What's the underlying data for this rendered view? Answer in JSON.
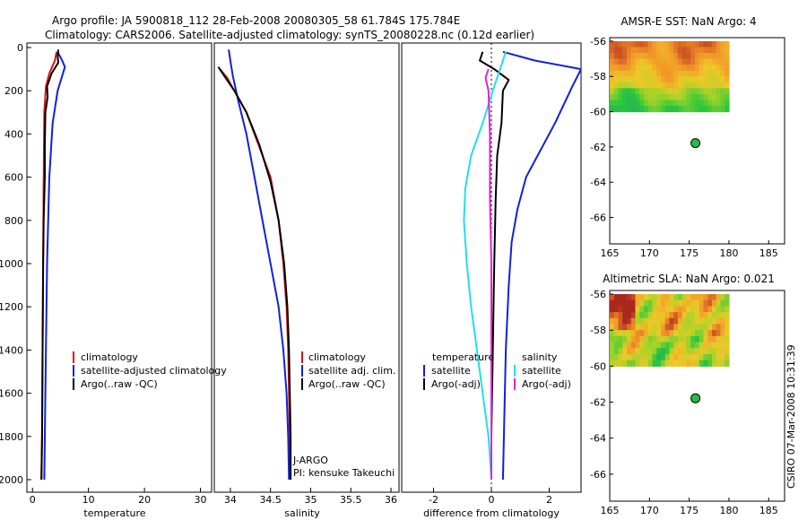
{
  "title_line1": "Argo profile: JA 5900818_112 28-Feb-2008 20080305_58 61.784S 175.784E",
  "title_line2": "Climatology: CARS2006. Satellite-adjusted climatology: synTS_20080228.nc (0.12d earlier)",
  "credit": "CSIRO 07-Mar-2008 10:31:39",
  "colors": {
    "climatology": "#e01010",
    "satellite": "#1020e0",
    "argo": "#000000",
    "cyan": "#20e0e8",
    "magenta": "#e020e0"
  },
  "chart_data": [
    {
      "type": "line",
      "xlabel": "temperature",
      "ylim": [
        2050,
        0
      ],
      "xlim": [
        -1,
        32
      ],
      "xticks": [
        0,
        10,
        20,
        30
      ],
      "yticks": [
        0,
        200,
        400,
        600,
        800,
        1000,
        1200,
        1400,
        1600,
        1800,
        2000
      ],
      "legend": [
        "climatology",
        "satellite-adjusted climatology",
        "Argo(..raw -QC)"
      ],
      "series": [
        {
          "name": "climatology",
          "color": "#e01010",
          "points": [
            [
              4.3,
              20
            ],
            [
              4.0,
              60
            ],
            [
              3.0,
              120
            ],
            [
              2.4,
              180
            ],
            [
              2.1,
              300
            ],
            [
              2.0,
              600
            ],
            [
              1.9,
              1000
            ],
            [
              1.8,
              1400
            ],
            [
              1.7,
              1800
            ],
            [
              1.6,
              2000
            ]
          ]
        },
        {
          "name": "satellite-adjusted climatology",
          "color": "#1020e0",
          "points": [
            [
              4.5,
              20
            ],
            [
              5.3,
              60
            ],
            [
              5.8,
              90
            ],
            [
              4.5,
              200
            ],
            [
              3.6,
              350
            ],
            [
              3.0,
              600
            ],
            [
              2.6,
              1000
            ],
            [
              2.4,
              1400
            ],
            [
              2.2,
              1800
            ],
            [
              2.1,
              2000
            ]
          ]
        },
        {
          "name": "Argo(..raw -QC)",
          "color": "#000000",
          "points": [
            [
              4.6,
              10
            ],
            [
              4.5,
              40
            ],
            [
              4.6,
              70
            ],
            [
              3.4,
              120
            ],
            [
              2.6,
              180
            ],
            [
              2.7,
              230
            ],
            [
              2.3,
              300
            ],
            [
              2.2,
              450
            ],
            [
              2.2,
              600
            ],
            [
              2.0,
              800
            ],
            [
              1.9,
              1000
            ],
            [
              1.8,
              1400
            ],
            [
              1.7,
              1800
            ],
            [
              1.6,
              2000
            ]
          ]
        }
      ]
    },
    {
      "type": "line",
      "xlabel": "salinity",
      "ylim": [
        2050,
        0
      ],
      "xlim": [
        33.8,
        36.1
      ],
      "xticks": [
        34,
        34.5,
        35,
        35.5,
        36
      ],
      "xticklabels": [
        "34",
        "34.5",
        "35",
        "35.5",
        "36"
      ],
      "legend": [
        "climatology",
        "satellite adj. clim.",
        "Argo(..raw -QC)"
      ],
      "annotations": [
        "J-ARGO",
        "PI: kensuke Takeuchi"
      ],
      "series": [
        {
          "name": "climatology",
          "color": "#e01010",
          "points": [
            [
              33.87,
              100
            ],
            [
              33.96,
              140
            ],
            [
              34.05,
              200
            ],
            [
              34.2,
              300
            ],
            [
              34.35,
              450
            ],
            [
              34.5,
              600
            ],
            [
              34.6,
              800
            ],
            [
              34.66,
              1000
            ],
            [
              34.7,
              1200
            ],
            [
              34.72,
              1400
            ],
            [
              34.73,
              1600
            ],
            [
              34.74,
              1800
            ],
            [
              34.74,
              2000
            ]
          ]
        },
        {
          "name": "satellite adj. clim.",
          "color": "#1020e0",
          "points": [
            [
              33.98,
              10
            ],
            [
              34.0,
              60
            ],
            [
              34.03,
              130
            ],
            [
              34.1,
              250
            ],
            [
              34.2,
              400
            ],
            [
              34.3,
              600
            ],
            [
              34.4,
              800
            ],
            [
              34.5,
              1000
            ],
            [
              34.6,
              1200
            ],
            [
              34.66,
              1400
            ],
            [
              34.7,
              1600
            ],
            [
              34.72,
              1800
            ],
            [
              34.73,
              2000
            ]
          ]
        },
        {
          "name": "Argo(..raw -QC)",
          "color": "#000000",
          "points": [
            [
              33.85,
              90
            ],
            [
              33.94,
              140
            ],
            [
              34.05,
              200
            ],
            [
              34.2,
              300
            ],
            [
              34.36,
              450
            ],
            [
              34.5,
              620
            ],
            [
              34.6,
              800
            ],
            [
              34.67,
              1000
            ],
            [
              34.71,
              1200
            ],
            [
              34.73,
              1400
            ],
            [
              34.74,
              1600
            ],
            [
              34.75,
              1800
            ],
            [
              34.75,
              2000
            ]
          ]
        }
      ]
    },
    {
      "type": "line",
      "xlabel": "difference from climatology",
      "ylim": [
        2050,
        0
      ],
      "xlim": [
        -3.1,
        3.1
      ],
      "xticks": [
        -2,
        0,
        2
      ],
      "legend_temperature_title": "temperature",
      "legend_salinity_title": "salinity",
      "legend": [
        "satellite",
        "Argo(-adj)",
        "satellite",
        "Argo(-adj)"
      ],
      "series": [
        {
          "name": "satellite",
          "group": "temperature",
          "color": "#1020e0",
          "points": [
            [
              0.4,
              20
            ],
            [
              1.5,
              60
            ],
            [
              3.1,
              100
            ],
            [
              2.8,
              180
            ],
            [
              2.2,
              350
            ],
            [
              1.6,
              500
            ],
            [
              1.2,
              600
            ],
            [
              0.9,
              750
            ],
            [
              0.7,
              900
            ],
            [
              0.6,
              1100
            ],
            [
              0.5,
              1400
            ],
            [
              0.45,
              1700
            ],
            [
              0.4,
              2000
            ]
          ]
        },
        {
          "name": "Argo(-adj)",
          "group": "temperature",
          "color": "#000000",
          "points": [
            [
              -0.3,
              20
            ],
            [
              -0.4,
              60
            ],
            [
              0.1,
              100
            ],
            [
              0.6,
              150
            ],
            [
              0.4,
              200
            ],
            [
              0.35,
              350
            ],
            [
              0.2,
              500
            ],
            [
              0.15,
              700
            ],
            [
              0.1,
              1000
            ],
            [
              0.05,
              1400
            ],
            [
              0.0,
              1800
            ],
            [
              0.0,
              2000
            ]
          ]
        },
        {
          "name": "satellite",
          "group": "salinity",
          "color": "#20e0e8",
          "points": [
            [
              0.5,
              20
            ],
            [
              0.3,
              100
            ],
            [
              0.05,
              200
            ],
            [
              -0.3,
              350
            ],
            [
              -0.7,
              500
            ],
            [
              -0.9,
              650
            ],
            [
              -0.95,
              800
            ],
            [
              -0.85,
              1000
            ],
            [
              -0.7,
              1200
            ],
            [
              -0.5,
              1400
            ],
            [
              -0.3,
              1600
            ],
            [
              -0.1,
              1800
            ],
            [
              0.0,
              2000
            ]
          ]
        },
        {
          "name": "Argo(-adj)",
          "group": "salinity",
          "color": "#e020e0",
          "points": [
            [
              -0.1,
              100
            ],
            [
              -0.2,
              140
            ],
            [
              -0.1,
              200
            ],
            [
              -0.05,
              400
            ],
            [
              -0.05,
              700
            ],
            [
              0.0,
              1000
            ],
            [
              0.0,
              1400
            ],
            [
              0.0,
              2000
            ]
          ]
        }
      ]
    },
    {
      "type": "heatmap",
      "title": "AMSR-E SST: NaN Argo: 4",
      "xlim": [
        165,
        187
      ],
      "ylim": [
        -67.5,
        -55.8
      ],
      "xticks": [
        165,
        170,
        175,
        180,
        185
      ],
      "yticks": [
        -56,
        -58,
        -60,
        -62,
        -64,
        -66
      ],
      "image_extent": {
        "lon": [
          165,
          180
        ],
        "lat": [
          -60,
          -56
        ]
      },
      "argo_position": {
        "lon": 175.784,
        "lat": -61.784
      }
    },
    {
      "type": "heatmap",
      "title": "Altimetric SLA: NaN Argo: 0.021",
      "xlim": [
        165,
        187
      ],
      "ylim": [
        -67.5,
        -55.8
      ],
      "xticks": [
        165,
        170,
        175,
        180,
        185
      ],
      "yticks": [
        -56,
        -58,
        -60,
        -62,
        -64,
        -66
      ],
      "image_extent": {
        "lon": [
          165,
          180
        ],
        "lat": [
          -60,
          -56
        ]
      },
      "argo_position": {
        "lon": 175.784,
        "lat": -61.784
      }
    }
  ]
}
